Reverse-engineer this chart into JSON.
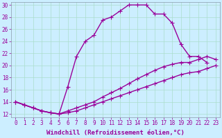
{
  "xlabel": "Windchill (Refroidissement éolien,°C)",
  "bg_color": "#cceeff",
  "line_color": "#990099",
  "grid_color": "#aaddcc",
  "xlim": [
    -0.5,
    23.5
  ],
  "ylim": [
    11.5,
    30.5
  ],
  "xticks": [
    0,
    1,
    2,
    3,
    4,
    5,
    6,
    7,
    8,
    9,
    10,
    11,
    12,
    13,
    14,
    15,
    16,
    17,
    18,
    19,
    20,
    21,
    22,
    23
  ],
  "yticks": [
    12,
    14,
    16,
    18,
    20,
    22,
    24,
    26,
    28,
    30
  ],
  "line1_x": [
    0,
    1,
    2,
    3,
    4,
    5,
    6,
    7,
    8,
    9,
    10,
    11,
    12,
    13,
    14,
    15,
    16,
    17,
    18,
    19,
    20,
    21,
    22
  ],
  "line1_y": [
    14.0,
    13.5,
    13.0,
    12.5,
    12.2,
    12.0,
    16.5,
    21.5,
    24.0,
    25.0,
    27.5,
    28.0,
    29.0,
    30.0,
    30.0,
    30.0,
    28.5,
    28.5,
    27.0,
    23.5,
    21.5,
    21.5,
    20.5
  ],
  "line2_x": [
    0,
    1,
    2,
    3,
    4,
    5,
    6,
    7,
    8,
    9,
    10,
    11,
    12,
    13,
    14,
    15,
    16,
    17,
    18,
    19,
    20,
    21,
    22,
    23
  ],
  "line2_y": [
    14.0,
    13.5,
    13.0,
    12.5,
    12.2,
    12.0,
    12.5,
    13.0,
    13.5,
    14.0,
    14.8,
    15.5,
    16.2,
    17.0,
    17.8,
    18.5,
    19.2,
    19.8,
    20.2,
    20.5,
    20.5,
    21.0,
    21.5,
    21.0
  ],
  "line3_x": [
    0,
    1,
    2,
    3,
    4,
    5,
    6,
    7,
    8,
    9,
    10,
    11,
    12,
    13,
    14,
    15,
    16,
    17,
    18,
    19,
    20,
    21,
    22,
    23
  ],
  "line3_y": [
    14.0,
    13.5,
    13.0,
    12.5,
    12.2,
    12.0,
    12.2,
    12.5,
    13.0,
    13.5,
    14.0,
    14.5,
    15.0,
    15.5,
    16.0,
    16.5,
    17.0,
    17.5,
    18.0,
    18.5,
    18.8,
    19.0,
    19.5,
    20.0
  ],
  "marker": "+",
  "markersize": 4,
  "linewidth": 1.0,
  "xlabel_fontsize": 6.5,
  "tick_fontsize": 5.5,
  "xlabel_color": "#990099",
  "tick_color": "#990099"
}
